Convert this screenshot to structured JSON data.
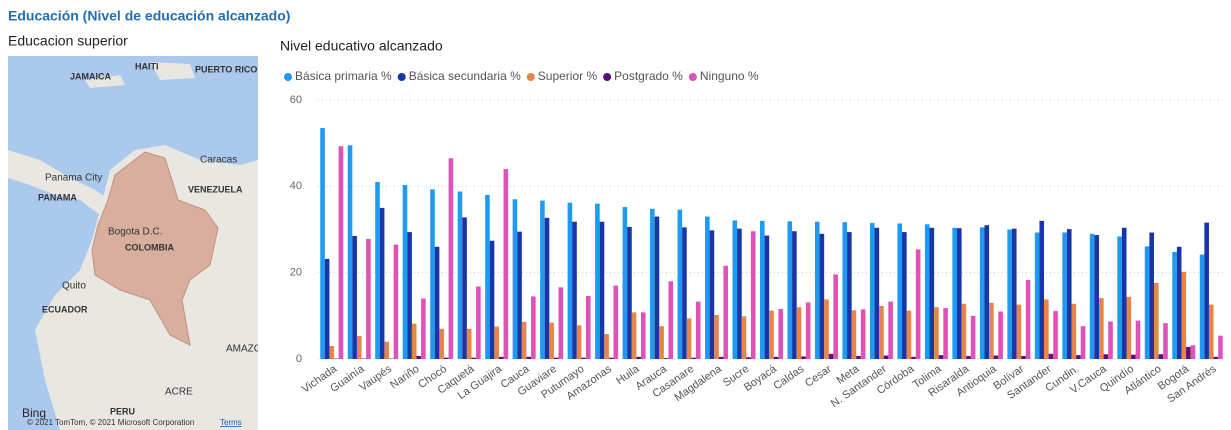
{
  "header": {
    "title": "Educación (Nivel de educación alcanzado)"
  },
  "map": {
    "title": "Educacion superior",
    "labels": [
      "JAMAICA",
      "HAITI",
      "PUERTO RICO (U.S.)",
      "Panama City",
      "PANAMA",
      "Caracas",
      "VENEZUELA",
      "Bogota D.C.",
      "COLOMBIA",
      "Quito",
      "ECUADOR",
      "AMAZONA",
      "ACRE",
      "PERU"
    ],
    "logo": "Bing",
    "attribution": "© 2021 TomTom, © 2021 Microsoft Corporation",
    "terms": "Terms"
  },
  "chart_data": {
    "type": "bar",
    "title": "Nivel educativo alcanzado",
    "categories": [
      "Vichada",
      "Guainía",
      "Vaupés",
      "Nariño",
      "Chocó",
      "Caquetá",
      "La Guajira",
      "Cauca",
      "Guaviare",
      "Putumayo",
      "Amazonas",
      "Huila",
      "Arauca",
      "Casanare",
      "Magdalena",
      "Sucre",
      "Boyacá",
      "Caldas",
      "Cesar",
      "Meta",
      "N. Santander",
      "Córdoba",
      "Tolima",
      "Risaralda",
      "Antioquia",
      "Bolívar",
      "Santander",
      "Cundin.",
      "V.Cauca",
      "Quindío",
      "Atlántico",
      "Bogotá",
      "San Andrés"
    ],
    "series": [
      {
        "name": "Básica primaria %",
        "color": "#1e9bf0",
        "values": [
          53.5,
          49.5,
          41,
          40.3,
          39.3,
          38.8,
          38,
          37,
          36.7,
          36.2,
          36,
          35.2,
          34.8,
          34.6,
          33,
          32.1,
          32,
          31.9,
          31.8,
          31.7,
          31.5,
          31.4,
          31.2,
          30.4,
          30.5,
          30,
          29.3,
          29.3,
          29,
          28.4,
          26.1,
          24.8,
          24.2
        ]
      },
      {
        "name": "Básica secundaria %",
        "color": "#1a35a8",
        "values": [
          23.2,
          28.5,
          35,
          29.4,
          26,
          32.8,
          27.4,
          29.5,
          32.7,
          31.8,
          31.8,
          30.6,
          33,
          30.5,
          29.8,
          30.2,
          28.6,
          29.6,
          29,
          29.4,
          30.4,
          29.4,
          30.4,
          30.3,
          31,
          30.2,
          32,
          30.1,
          28.7,
          30.4,
          29.3,
          26,
          31.6
        ]
      },
      {
        "name": "Superior %",
        "color": "#e8834a",
        "values": [
          3,
          5.3,
          4,
          8.2,
          7,
          7,
          7.5,
          8.6,
          8.4,
          7.8,
          5.8,
          10.8,
          7.6,
          9.4,
          10.2,
          9.9,
          11.2,
          12,
          13.8,
          11.3,
          12.3,
          11.2,
          12,
          12.8,
          13,
          12.6,
          13.8,
          12.8,
          14.1,
          14.4,
          17.6,
          20.2,
          12.6
        ]
      },
      {
        "name": "Postgrado %",
        "color": "#5b0f7a",
        "values": [
          0.1,
          0.1,
          0.1,
          0.7,
          0.3,
          0.3,
          0.5,
          0.5,
          0.3,
          0.3,
          0.3,
          0.5,
          0.2,
          0.3,
          0.5,
          0.4,
          0.5,
          0.6,
          1.2,
          0.7,
          0.8,
          0.5,
          0.9,
          0.7,
          0.8,
          0.7,
          1.2,
          0.9,
          1.1,
          1,
          1.1,
          2.8,
          0.5
        ]
      },
      {
        "name": "Ninguno %",
        "color": "#e052b8",
        "values": [
          49.3,
          27.8,
          26.5,
          14,
          46.5,
          16.8,
          44,
          14.5,
          16.6,
          14.6,
          17,
          10.8,
          18,
          13.3,
          21.6,
          29.6,
          11.6,
          13.1,
          19.6,
          11.5,
          13.3,
          25.4,
          11.8,
          10,
          11,
          18.3,
          11.1,
          7.6,
          8.7,
          8.9,
          8.3,
          3.2,
          5.4
        ]
      }
    ],
    "ylim": [
      0,
      60
    ],
    "yticks": [
      0,
      20,
      40,
      60
    ],
    "grid": true
  }
}
